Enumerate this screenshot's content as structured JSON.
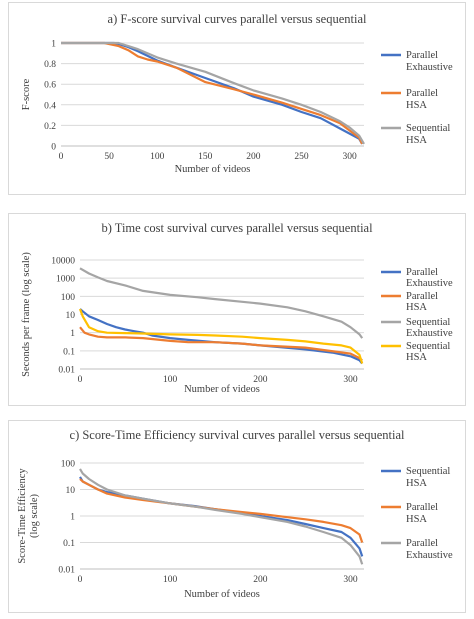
{
  "chart_data": [
    {
      "type": "line",
      "title": "a) F-score survival curves parallel versus sequential",
      "xlabel": "Number of videos",
      "ylabel": "F-score",
      "xlim": [
        0,
        315
      ],
      "ylim": [
        0,
        1
      ],
      "xticks": [
        "0",
        "50",
        "100",
        "150",
        "200",
        "250",
        "300"
      ],
      "yticks": [
        "0",
        "0.2",
        "0.4",
        "0.6",
        "0.8",
        "1"
      ],
      "grid": true,
      "legend": "right",
      "series": [
        {
          "name": "Parallel Exhaustive",
          "legend_lines": [
            "Parallel",
            "Exhaustive"
          ],
          "color": "#4472C4",
          "x": [
            0,
            40,
            55,
            60,
            70,
            80,
            100,
            120,
            150,
            180,
            200,
            230,
            250,
            270,
            290,
            300,
            310,
            313
          ],
          "y": [
            1,
            1,
            1,
            0.99,
            0.96,
            0.92,
            0.83,
            0.76,
            0.66,
            0.56,
            0.48,
            0.4,
            0.33,
            0.27,
            0.17,
            0.12,
            0.07,
            0.02
          ]
        },
        {
          "name": "Parallel HSA",
          "legend_lines": [
            "Parallel",
            "HSA"
          ],
          "color": "#ED7D31",
          "x": [
            0,
            45,
            50,
            60,
            70,
            80,
            90,
            100,
            120,
            150,
            180,
            200,
            230,
            250,
            270,
            290,
            300,
            310,
            313
          ],
          "y": [
            1,
            1,
            0.99,
            0.97,
            0.93,
            0.87,
            0.84,
            0.82,
            0.76,
            0.62,
            0.55,
            0.5,
            0.42,
            0.36,
            0.3,
            0.22,
            0.15,
            0.08,
            0.02
          ]
        },
        {
          "name": "Sequential HSA",
          "legend_lines": [
            "Sequential",
            "HSA"
          ],
          "color": "#A5A5A5",
          "x": [
            0,
            50,
            60,
            70,
            80,
            100,
            120,
            150,
            180,
            200,
            230,
            250,
            270,
            290,
            300,
            310,
            315
          ],
          "y": [
            1,
            1,
            1,
            0.97,
            0.94,
            0.86,
            0.8,
            0.72,
            0.61,
            0.54,
            0.46,
            0.4,
            0.33,
            0.24,
            0.18,
            0.1,
            0.02
          ]
        }
      ]
    },
    {
      "type": "line",
      "title": "b) Time cost survival curves parallel versus sequential",
      "xlabel": "Number of videos",
      "ylabel": "Seconds per frame (log scale)",
      "xlim": [
        0,
        315
      ],
      "ylim": [
        0.01,
        10000
      ],
      "yscale": "log",
      "xticks": [
        "0",
        "100",
        "200",
        "300"
      ],
      "yticks": [
        "0.01",
        "0.1",
        "1",
        "10",
        "100",
        "1000",
        "10000"
      ],
      "grid": true,
      "legend": "right",
      "series": [
        {
          "name": "Parallel Exhaustive",
          "legend_lines": [
            "Parallel",
            "Exhaustive"
          ],
          "color": "#4472C4",
          "x": [
            0,
            3,
            10,
            20,
            30,
            40,
            50,
            60,
            70,
            80,
            100,
            120,
            150,
            180,
            200,
            250,
            280,
            300,
            310,
            313
          ],
          "y": [
            20,
            15,
            8,
            5,
            3,
            2,
            1.5,
            1.2,
            1,
            0.7,
            0.5,
            0.4,
            0.3,
            0.25,
            0.2,
            0.12,
            0.08,
            0.05,
            0.03,
            0.02
          ]
        },
        {
          "name": "Parallel HSA",
          "legend_lines": [
            "Parallel",
            "HSA"
          ],
          "color": "#ED7D31",
          "x": [
            0,
            5,
            10,
            20,
            30,
            50,
            70,
            100,
            120,
            150,
            180,
            200,
            250,
            300,
            310,
            313
          ],
          "y": [
            2,
            1,
            0.8,
            0.6,
            0.55,
            0.55,
            0.5,
            0.35,
            0.3,
            0.3,
            0.25,
            0.2,
            0.15,
            0.07,
            0.04,
            0.03
          ]
        },
        {
          "name": "Sequential Exhaustive",
          "legend_lines": [
            "Sequential",
            "Exhaustive"
          ],
          "color": "#A5A5A5",
          "x": [
            0,
            10,
            20,
            30,
            50,
            70,
            100,
            130,
            150,
            180,
            200,
            230,
            250,
            270,
            290,
            300,
            310,
            313
          ],
          "y": [
            3500,
            1800,
            1100,
            700,
            400,
            200,
            120,
            90,
            70,
            50,
            40,
            25,
            15,
            8,
            4,
            2,
            0.8,
            0.5
          ]
        },
        {
          "name": "Sequential HSA",
          "legend_lines": [
            "Sequential",
            "HSA"
          ],
          "color": "#FFC000",
          "x": [
            0,
            3,
            10,
            20,
            30,
            50,
            70,
            100,
            130,
            150,
            180,
            200,
            230,
            250,
            270,
            290,
            300,
            310,
            313
          ],
          "y": [
            20,
            8,
            2,
            1.2,
            1,
            0.95,
            0.9,
            0.8,
            0.75,
            0.7,
            0.6,
            0.5,
            0.4,
            0.33,
            0.25,
            0.2,
            0.15,
            0.06,
            0.02
          ]
        }
      ]
    },
    {
      "type": "line",
      "title": "c) Score-Time Efficiency survival curves parallel versus sequential",
      "xlabel": "Number of videos",
      "ylabel": "Score-Time Efficiency (log scale)",
      "ylabel_lines": [
        "Score-Time Efficiency",
        "(log scale)"
      ],
      "xlim": [
        0,
        315
      ],
      "ylim": [
        0.01,
        100
      ],
      "yscale": "log",
      "xticks": [
        "0",
        "100",
        "200",
        "300"
      ],
      "yticks": [
        "0.01",
        "0.1",
        "1",
        "10",
        "100"
      ],
      "grid": true,
      "legend": "right",
      "series": [
        {
          "name": "Sequential HSA",
          "legend_lines": [
            "Sequential",
            "HSA"
          ],
          "color": "#4472C4",
          "x": [
            0,
            3,
            10,
            20,
            30,
            50,
            70,
            100,
            130,
            150,
            180,
            200,
            230,
            250,
            270,
            290,
            300,
            310,
            313
          ],
          "y": [
            30,
            20,
            15,
            10,
            8,
            6,
            4.5,
            3,
            2.3,
            1.8,
            1.3,
            1,
            0.7,
            0.5,
            0.35,
            0.25,
            0.15,
            0.06,
            0.03
          ]
        },
        {
          "name": "Parallel HSA",
          "legend_lines": [
            "Parallel",
            "HSA"
          ],
          "color": "#ED7D31",
          "x": [
            0,
            3,
            10,
            20,
            30,
            50,
            70,
            100,
            130,
            150,
            180,
            200,
            230,
            250,
            270,
            290,
            300,
            310,
            313
          ],
          "y": [
            25,
            20,
            15,
            10,
            7,
            5,
            4,
            3,
            2.2,
            1.8,
            1.4,
            1.2,
            0.9,
            0.75,
            0.6,
            0.45,
            0.35,
            0.2,
            0.1
          ]
        },
        {
          "name": "Parallel Exhaustive",
          "legend_lines": [
            "Parallel",
            "Exhaustive"
          ],
          "color": "#A5A5A5",
          "x": [
            0,
            3,
            10,
            20,
            30,
            50,
            70,
            100,
            130,
            150,
            180,
            200,
            230,
            250,
            270,
            290,
            300,
            310,
            313
          ],
          "y": [
            60,
            40,
            25,
            15,
            10,
            6,
            4.5,
            3,
            2.2,
            1.7,
            1.2,
            0.9,
            0.6,
            0.4,
            0.25,
            0.15,
            0.08,
            0.03,
            0.015
          ]
        }
      ]
    }
  ]
}
